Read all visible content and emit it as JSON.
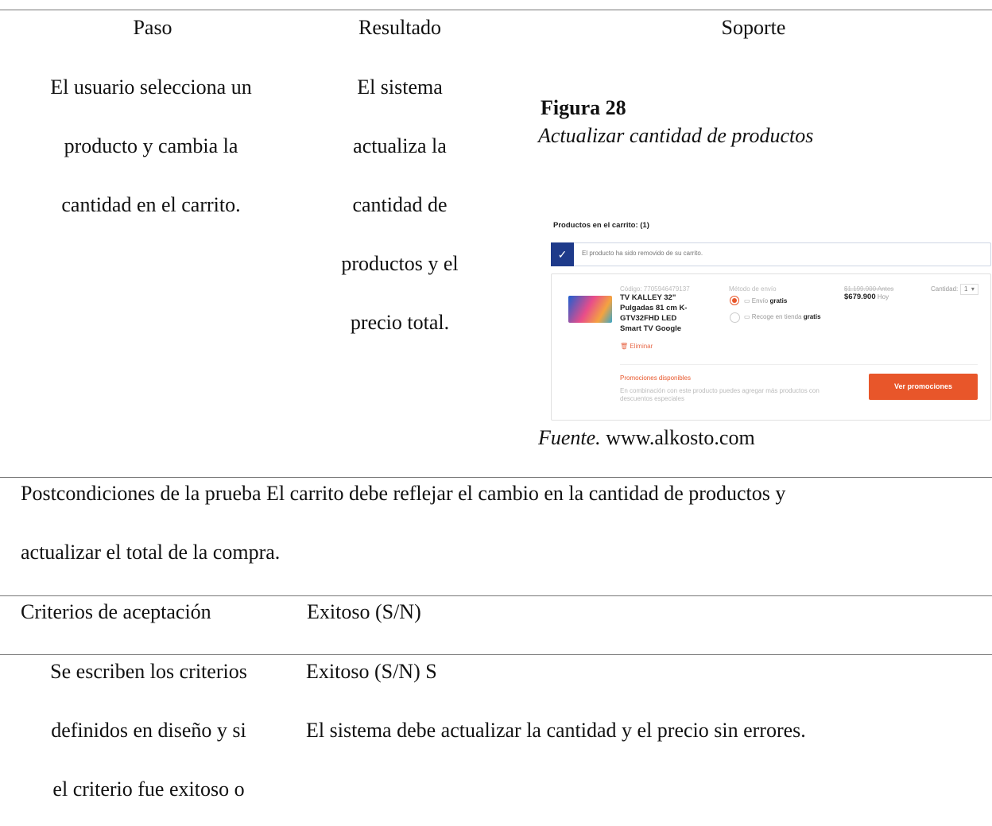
{
  "table": {
    "header": [
      "Paso",
      "Resultado",
      "Soporte"
    ],
    "row": {
      "paso": [
        "El usuario selecciona un",
        "producto y cambia la",
        "cantidad en el carrito."
      ],
      "resultado": [
        "El sistema",
        "actualiza la",
        "cantidad de",
        "productos y el",
        "precio total."
      ],
      "figure": {
        "label": "Figura 28",
        "caption": "Actualizar cantidad de productos",
        "source_label": "Fuente.",
        "source": "www.alkosto.com",
        "screenshot": {
          "heading": "Productos en el carrito: (1)",
          "notice": "El producto ha sido removido de su carrito.",
          "code": "Código: 7705946479137",
          "product_name": [
            "TV KALLEY 32\"",
            "Pulgadas 81 cm K-",
            "GTV32FHD LED",
            "Smart TV Google"
          ],
          "remove": "Eliminar",
          "shipping_title": "Método de envío",
          "shipping_option_1": "Envío",
          "shipping_option_1_free": "gratis",
          "shipping_option_2": "Recoge en tienda",
          "shipping_option_2_free": "gratis",
          "price_before": "$1.199.900 Antes",
          "price_now": "$679.900",
          "price_now_suffix": "Hoy",
          "quantity_label": "Cantidad:",
          "quantity": "1",
          "promotions_title": "Promociones disponibles",
          "promotions_text": [
            "En combinación con este producto puedes agregar más productos con",
            "descuentos especiales"
          ],
          "promotions_button": "Ver promociones"
        }
      }
    }
  },
  "postconditions": [
    "Postcondiciones de la prueba El carrito debe reflejar el cambio en la cantidad de productos y",
    "actualizar el total de la compra."
  ],
  "criteria": {
    "header": [
      "Criterios de aceptación",
      "Exitoso (S/N)"
    ],
    "left": [
      "Se escriben los criterios",
      "definidos en diseño y si",
      "el criterio fue exitoso o"
    ],
    "right": [
      "Exitoso (S/N) S",
      "El sistema debe actualizar la cantidad y el precio sin errores."
    ]
  }
}
